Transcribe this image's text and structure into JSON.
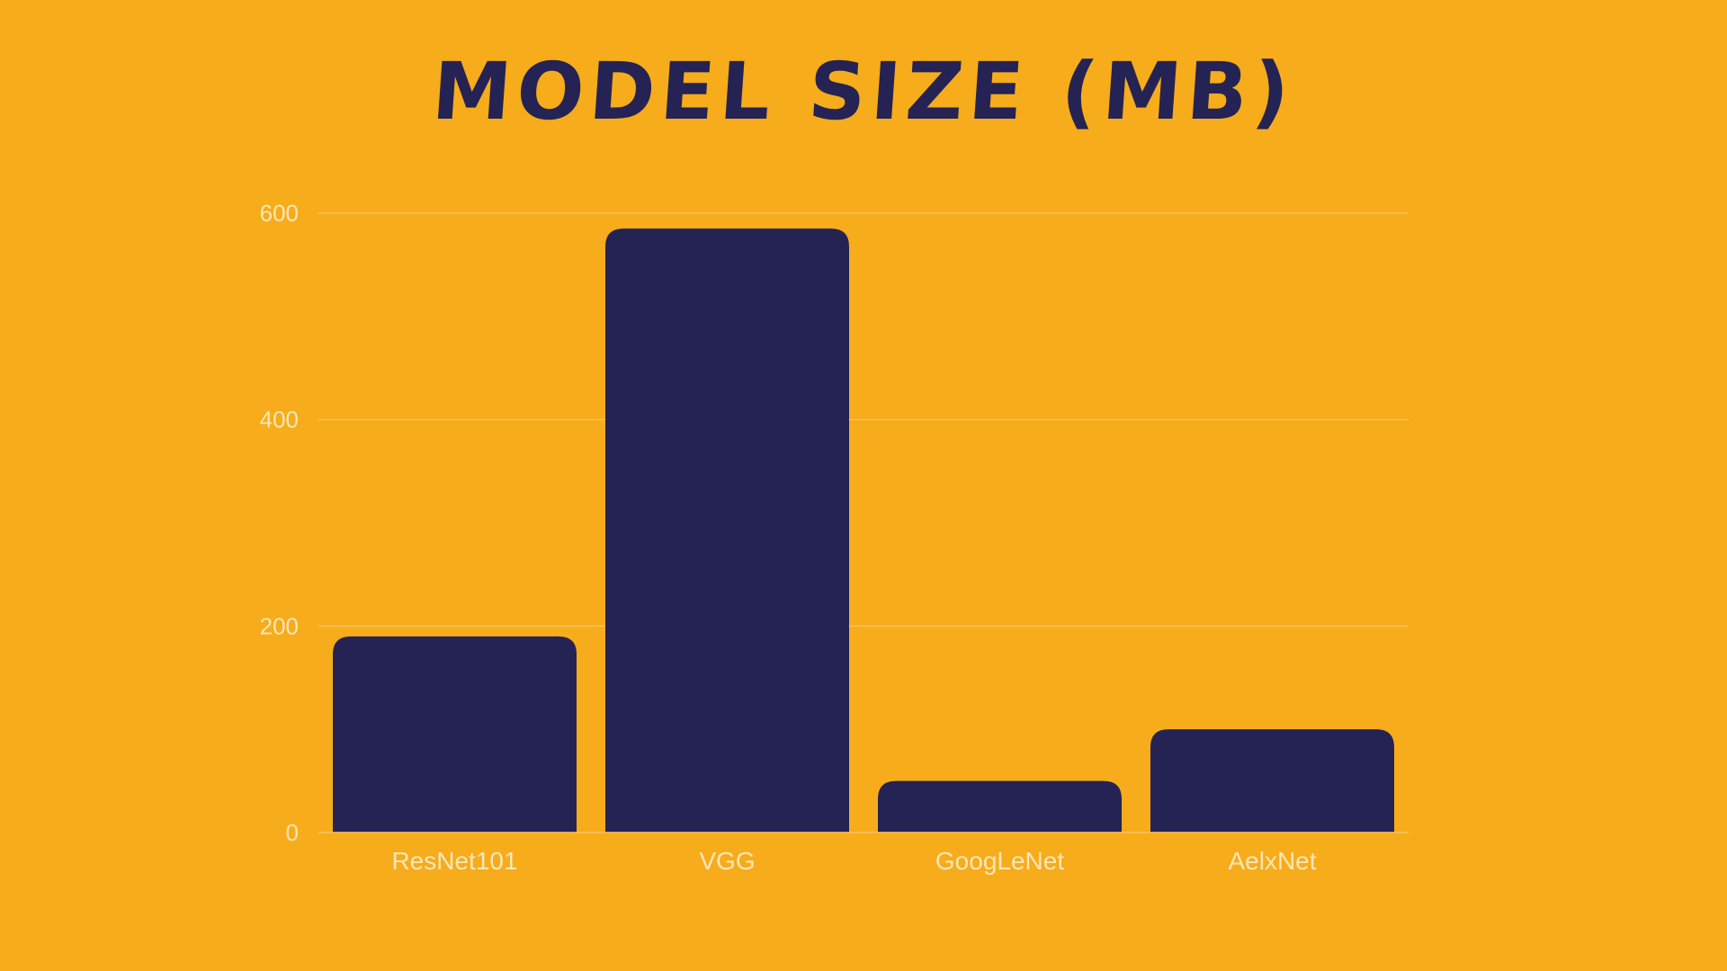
{
  "colors": {
    "background": "#f6ac1b",
    "bar": "#252354",
    "grid": "#f9c35a",
    "text": "#fde6b8",
    "title": "#252354"
  },
  "chart_data": {
    "type": "bar",
    "title": "MODEL SIZE (MB)",
    "xlabel": "",
    "ylabel": "",
    "categories": [
      "ResNet101",
      "VGG",
      "GoogLeNet",
      "AelxNet"
    ],
    "values": [
      190,
      585,
      50,
      100
    ],
    "ylim": [
      0,
      600
    ],
    "yticks": [
      0,
      200,
      400,
      600
    ],
    "grid": true,
    "legend": "none"
  }
}
